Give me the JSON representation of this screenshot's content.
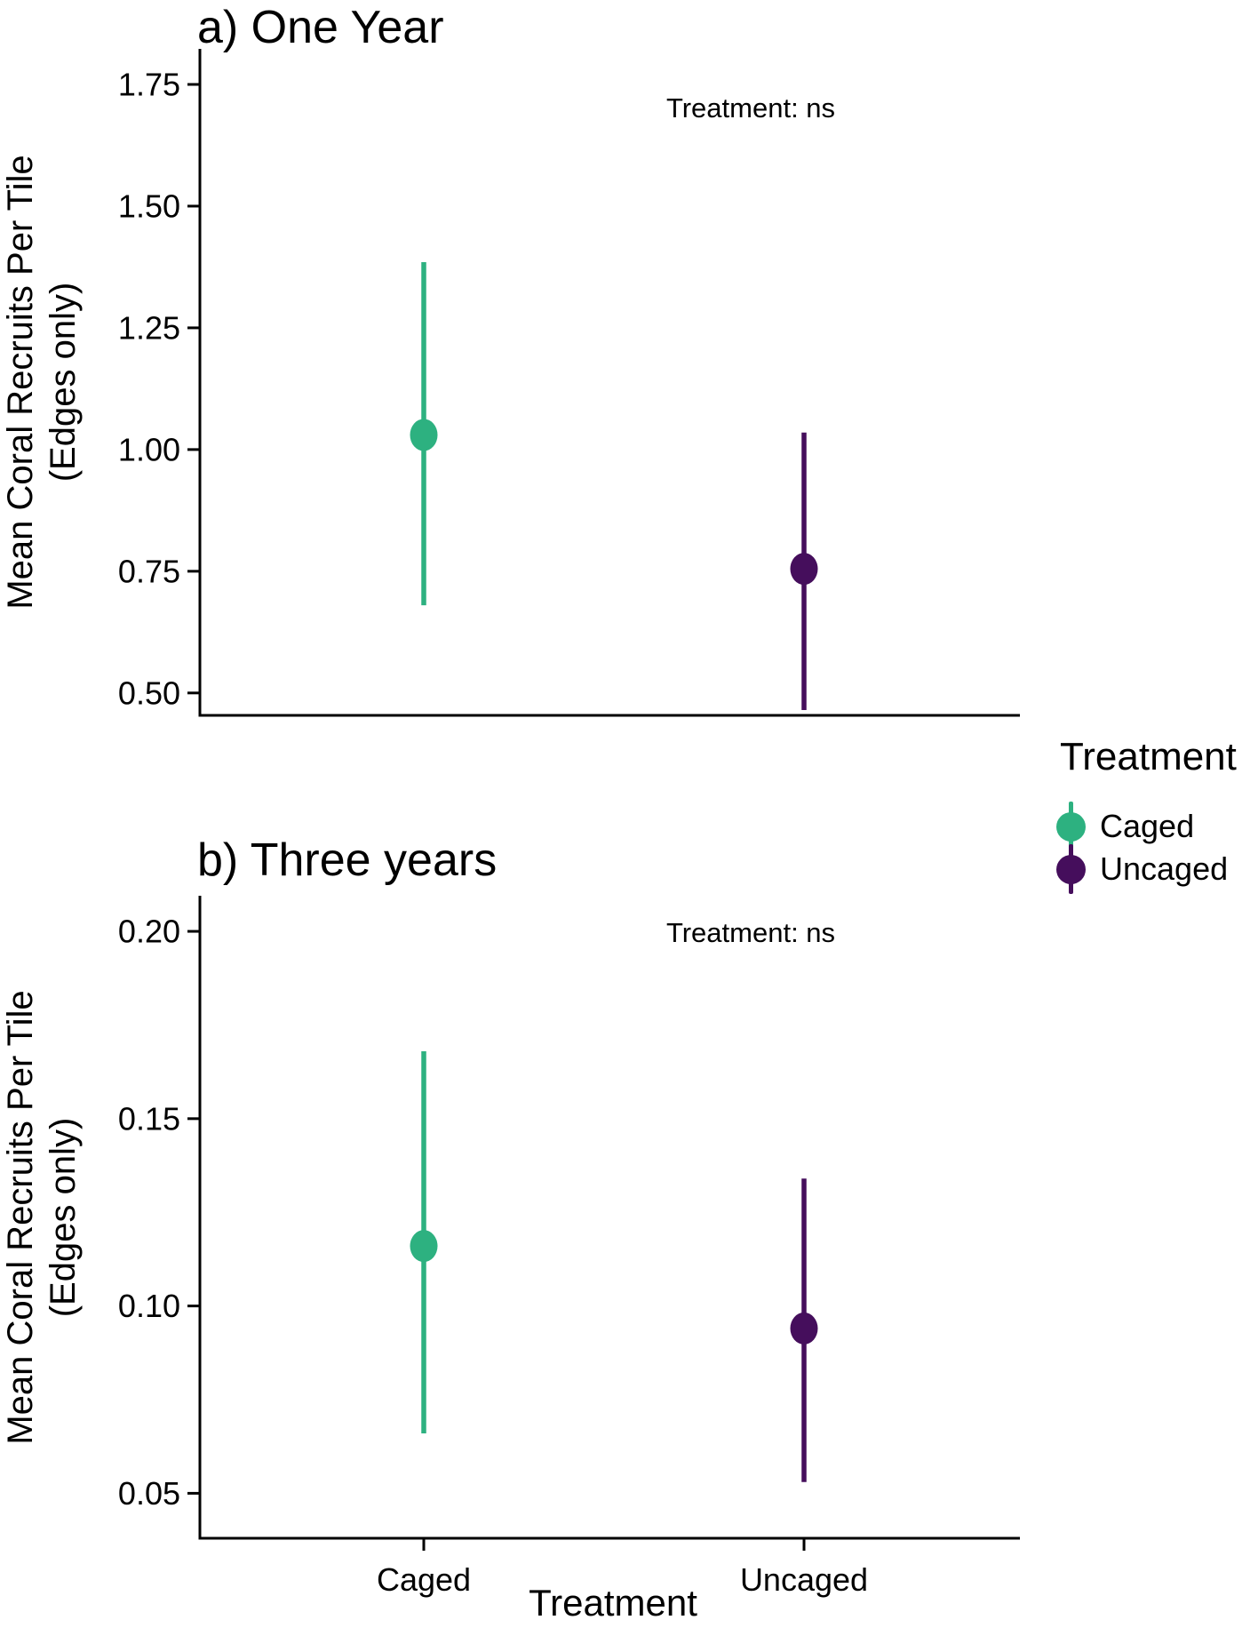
{
  "figure": {
    "background": "#ffffff",
    "text_color": "#000000",
    "axis_color": "#000000"
  },
  "legend": {
    "title": "Treatment",
    "items": [
      {
        "label": "Caged",
        "color": "#2DB180"
      },
      {
        "label": "Uncaged",
        "color": "#450E5C"
      }
    ]
  },
  "chart_data": [
    {
      "type": "pointrange",
      "panel": "a",
      "title": "a) One Year",
      "annotation": "Treatment: ns",
      "ylabel_line1": "Mean Coral Recruits Per Tile",
      "ylabel_line2": "(Edges only)",
      "xlabel": "",
      "categories": [
        "Caged",
        "Uncaged"
      ],
      "x_tick_labels_shown": false,
      "yticks": [
        {
          "v": 1.75,
          "label": "1.75"
        },
        {
          "v": 1.5,
          "label": "1.50"
        },
        {
          "v": 1.25,
          "label": "1.25"
        },
        {
          "v": 1.0,
          "label": "1.00"
        },
        {
          "v": 0.75,
          "label": "0.75"
        },
        {
          "v": 0.5,
          "label": "0.50"
        }
      ],
      "ylim": [
        0.454,
        1.823
      ],
      "series": [
        {
          "name": "Caged",
          "color": "#2DB180",
          "mean": 1.03,
          "lower": 0.68,
          "upper": 1.385
        },
        {
          "name": "Uncaged",
          "color": "#450E5C",
          "mean": 0.755,
          "lower": 0.465,
          "upper": 1.035
        }
      ],
      "legend_shown": false,
      "grid": "none"
    },
    {
      "type": "pointrange",
      "panel": "b",
      "title": "b) Three years",
      "annotation": "Treatment: ns",
      "ylabel_line1": "Mean Coral Recruits Per Tile",
      "ylabel_line2": "(Edges only)",
      "xlabel": "Treatment",
      "categories": [
        "Caged",
        "Uncaged"
      ],
      "x_tick_labels_shown": true,
      "yticks": [
        {
          "v": 0.2,
          "label": "0.20"
        },
        {
          "v": 0.15,
          "label": "0.15"
        },
        {
          "v": 0.1,
          "label": "0.10"
        },
        {
          "v": 0.05,
          "label": "0.05"
        }
      ],
      "ylim": [
        0.038,
        0.2095
      ],
      "series": [
        {
          "name": "Caged",
          "color": "#2DB180",
          "mean": 0.116,
          "lower": 0.066,
          "upper": 0.168
        },
        {
          "name": "Uncaged",
          "color": "#450E5C",
          "mean": 0.094,
          "lower": 0.053,
          "upper": 0.134
        }
      ],
      "legend_shown": false,
      "grid": "none"
    }
  ]
}
